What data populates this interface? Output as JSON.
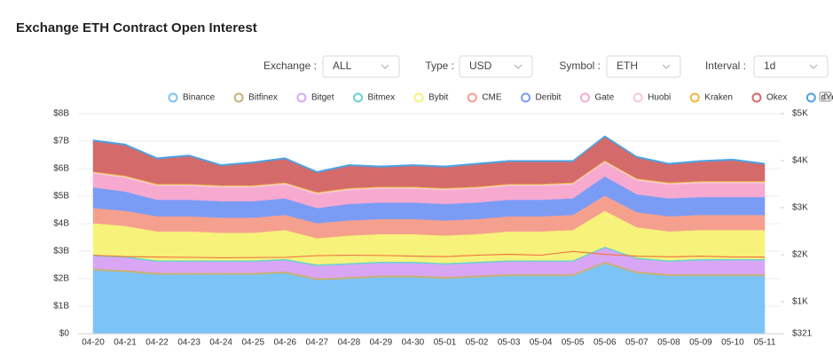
{
  "controls": [
    {
      "label": "Exchange :",
      "value": "ALL"
    },
    {
      "label": "Type :",
      "value": "USD"
    },
    {
      "label": "Symbol :",
      "value": "ETH"
    },
    {
      "label": "Interval :",
      "value": "1d"
    }
  ],
  "chart_data": {
    "type": "stacked-area",
    "title": "Exchange ETH Contract Open Interest",
    "categories": [
      "04-20",
      "04-21",
      "04-22",
      "04-23",
      "04-24",
      "04-25",
      "04-26",
      "04-27",
      "04-28",
      "04-29",
      "04-30",
      "05-01",
      "05-02",
      "05-03",
      "05-04",
      "05-05",
      "05-06",
      "05-07",
      "05-08",
      "05-09",
      "05-10",
      "05-11"
    ],
    "series": [
      {
        "name": "Binance",
        "color": "#7cc4f8",
        "values": [
          2.3,
          2.25,
          2.15,
          2.15,
          2.15,
          2.15,
          2.2,
          1.95,
          2.0,
          2.05,
          2.05,
          2.0,
          2.05,
          2.1,
          2.1,
          2.1,
          2.55,
          2.2,
          2.1,
          2.1,
          2.1,
          2.1
        ]
      },
      {
        "name": "Bitfinex",
        "color": "#c8b07a",
        "values": [
          0.07,
          0.07,
          0.07,
          0.07,
          0.07,
          0.07,
          0.07,
          0.07,
          0.07,
          0.07,
          0.07,
          0.07,
          0.07,
          0.07,
          0.07,
          0.07,
          0.07,
          0.07,
          0.07,
          0.07,
          0.07,
          0.07
        ]
      },
      {
        "name": "Bitget",
        "color": "#d9a6f5",
        "values": [
          0.45,
          0.45,
          0.4,
          0.4,
          0.4,
          0.4,
          0.4,
          0.45,
          0.45,
          0.45,
          0.45,
          0.45,
          0.45,
          0.45,
          0.45,
          0.45,
          0.5,
          0.45,
          0.45,
          0.5,
          0.5,
          0.5
        ]
      },
      {
        "name": "Bitmex",
        "color": "#67d4cf",
        "values": [
          0.05,
          0.05,
          0.05,
          0.05,
          0.05,
          0.05,
          0.05,
          0.05,
          0.05,
          0.05,
          0.05,
          0.05,
          0.05,
          0.05,
          0.05,
          0.05,
          0.05,
          0.05,
          0.05,
          0.05,
          0.05,
          0.05
        ]
      },
      {
        "name": "Bybit",
        "color": "#f7f27a",
        "values": [
          1.15,
          1.1,
          1.05,
          1.05,
          1.0,
          1.0,
          1.05,
          0.95,
          1.0,
          1.0,
          1.0,
          1.0,
          1.0,
          1.05,
          1.05,
          1.1,
          1.3,
          1.1,
          1.05,
          1.05,
          1.05,
          1.05
        ]
      },
      {
        "name": "CME",
        "color": "#f5a08f",
        "values": [
          0.55,
          0.55,
          0.55,
          0.55,
          0.55,
          0.55,
          0.55,
          0.55,
          0.55,
          0.55,
          0.55,
          0.55,
          0.55,
          0.55,
          0.55,
          0.55,
          0.55,
          0.55,
          0.55,
          0.55,
          0.55,
          0.55
        ]
      },
      {
        "name": "Deribit",
        "color": "#7b9cf5",
        "values": [
          0.75,
          0.7,
          0.6,
          0.6,
          0.6,
          0.6,
          0.6,
          0.55,
          0.6,
          0.6,
          0.6,
          0.6,
          0.6,
          0.6,
          0.6,
          0.6,
          0.7,
          0.65,
          0.65,
          0.65,
          0.65,
          0.65
        ]
      },
      {
        "name": "Gate",
        "color": "#f7a9d0",
        "values": [
          0.5,
          0.5,
          0.5,
          0.5,
          0.5,
          0.5,
          0.5,
          0.5,
          0.5,
          0.5,
          0.5,
          0.5,
          0.5,
          0.5,
          0.5,
          0.5,
          0.5,
          0.5,
          0.5,
          0.5,
          0.5,
          0.5
        ]
      },
      {
        "name": "Huobi",
        "color": "#f9c8d6",
        "values": [
          0.05,
          0.05,
          0.05,
          0.05,
          0.05,
          0.05,
          0.05,
          0.05,
          0.05,
          0.05,
          0.05,
          0.05,
          0.05,
          0.05,
          0.05,
          0.05,
          0.05,
          0.05,
          0.05,
          0.05,
          0.05,
          0.05
        ]
      },
      {
        "name": "Kraken",
        "color": "#f0b83a",
        "values": [
          0.03,
          0.03,
          0.03,
          0.03,
          0.03,
          0.03,
          0.03,
          0.03,
          0.03,
          0.03,
          0.03,
          0.03,
          0.03,
          0.03,
          0.03,
          0.03,
          0.03,
          0.03,
          0.03,
          0.03,
          0.03,
          0.03
        ]
      },
      {
        "name": "Okex",
        "color": "#d46a6a",
        "values": [
          1.1,
          1.1,
          0.9,
          1.0,
          0.7,
          0.8,
          0.85,
          0.7,
          0.8,
          0.7,
          0.75,
          0.75,
          0.8,
          0.8,
          0.8,
          0.75,
          0.85,
          0.75,
          0.65,
          0.7,
          0.75,
          0.6
        ]
      },
      {
        "name": "dYdX",
        "color": "#4ba3e3",
        "values": [
          0.05,
          0.05,
          0.05,
          0.05,
          0.05,
          0.05,
          0.05,
          0.05,
          0.05,
          0.05,
          0.05,
          0.05,
          0.05,
          0.05,
          0.05,
          0.05,
          0.05,
          0.05,
          0.05,
          0.05,
          0.05,
          0.05
        ]
      }
    ],
    "price": {
      "color": "#f07a45",
      "axis": "y2",
      "values": [
        1990,
        1960,
        1950,
        1945,
        1935,
        1940,
        1945,
        1980,
        1990,
        1985,
        1970,
        1960,
        1990,
        2010,
        1990,
        2070,
        2010,
        1970,
        1955,
        1970,
        1950,
        1950
      ]
    },
    "ylim": [
      0,
      8
    ],
    "yticks": [
      {
        "value": 0,
        "label": "$0"
      },
      {
        "value": 1,
        "label": "$1B"
      },
      {
        "value": 2,
        "label": "$2B"
      },
      {
        "value": 3,
        "label": "$3B"
      },
      {
        "value": 4,
        "label": "$4B"
      },
      {
        "value": 5,
        "label": "$5B"
      },
      {
        "value": 6,
        "label": "$6B"
      },
      {
        "value": 7,
        "label": "$7B"
      },
      {
        "value": 8,
        "label": "$8B"
      }
    ],
    "y2lim": [
      321,
      5000
    ],
    "y2ticks": [
      {
        "value": 321,
        "label": "$321"
      },
      {
        "value": 1000,
        "label": "$1K"
      },
      {
        "value": 2000,
        "label": "$2K"
      },
      {
        "value": 3000,
        "label": "$3K"
      },
      {
        "value": 4000,
        "label": "$4K"
      },
      {
        "value": 5000,
        "label": "$5K"
      }
    ]
  }
}
